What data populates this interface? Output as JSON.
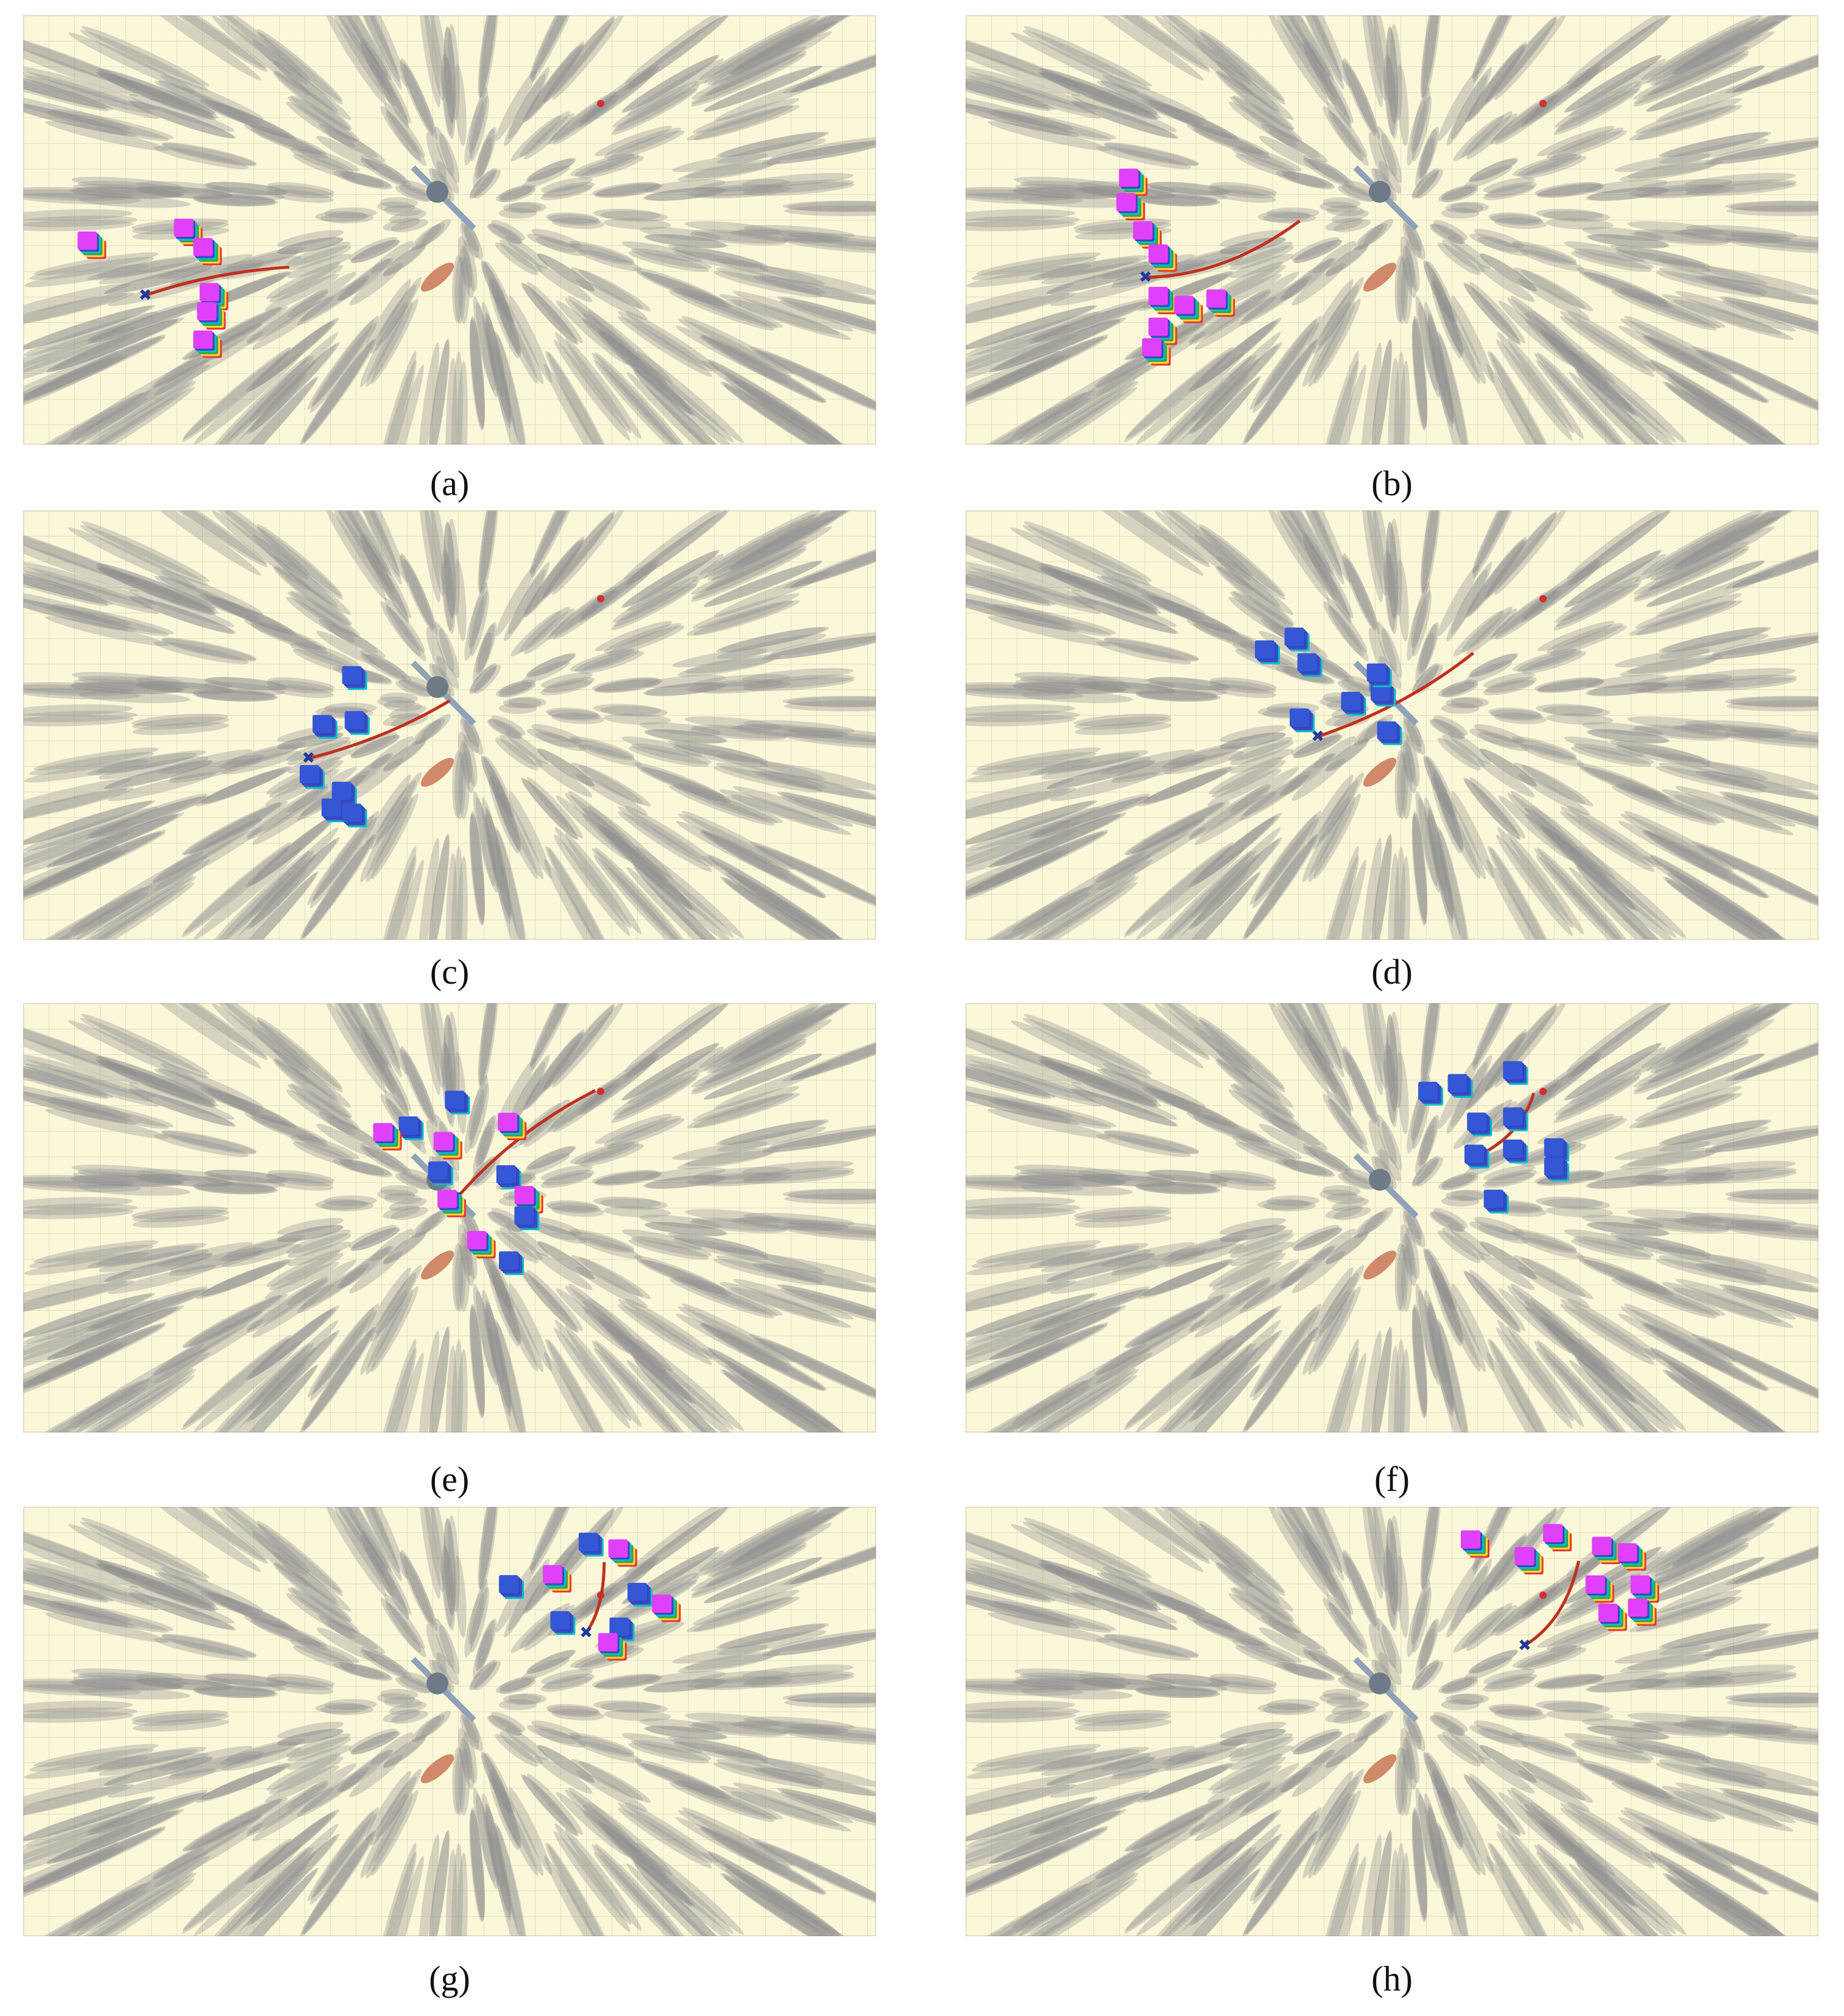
{
  "figure": {
    "panels": [
      {
        "label": "(a)"
      },
      {
        "label": "(b)"
      },
      {
        "label": "(c)"
      },
      {
        "label": "(d)"
      },
      {
        "label": "(e)"
      },
      {
        "label": "(f)"
      },
      {
        "label": "(g)"
      },
      {
        "label": "(h)"
      }
    ]
  }
}
